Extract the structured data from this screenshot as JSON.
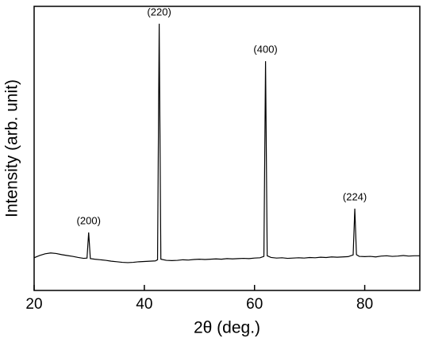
{
  "chart_data": {
    "type": "line",
    "xlabel": "2θ (deg.)",
    "ylabel": "Intensity (arb. unit)",
    "xlim": [
      20,
      90
    ],
    "ylim": [
      0,
      100
    ],
    "xticks": [
      20,
      40,
      60,
      80
    ],
    "yticks": [],
    "x": [
      20,
      21,
      22,
      23,
      24,
      25,
      26,
      27,
      28,
      29,
      29.6,
      29.9,
      30.2,
      31,
      32,
      33,
      34,
      35,
      36,
      37,
      38,
      39,
      40,
      41,
      42,
      42.4,
      42.7,
      43.0,
      44,
      45,
      46,
      47,
      48,
      49,
      50,
      51,
      52,
      53,
      54,
      55,
      56,
      57,
      58,
      59,
      60,
      61,
      61.7,
      62.0,
      62.3,
      63,
      64,
      65,
      66,
      67,
      68,
      69,
      70,
      71,
      72,
      73,
      74,
      75,
      76,
      77,
      77.9,
      78.2,
      78.5,
      79,
      80,
      81,
      82,
      83,
      84,
      85,
      86,
      87,
      88,
      89,
      90
    ],
    "series": [
      {
        "color": "#000000",
        "values": [
          11.5,
          12.3,
          12.9,
          13.2,
          13.0,
          12.6,
          12.3,
          12.0,
          11.6,
          11.3,
          11.4,
          20.4,
          11.2,
          11.0,
          10.8,
          10.6,
          10.3,
          10.1,
          9.9,
          9.8,
          9.9,
          10.1,
          10.2,
          10.3,
          10.4,
          10.8,
          93.9,
          11.0,
          10.6,
          10.5,
          10.6,
          10.8,
          10.7,
          10.9,
          11.0,
          10.9,
          11.0,
          11.1,
          11.0,
          11.2,
          11.1,
          11.2,
          11.3,
          11.2,
          11.4,
          11.5,
          12.0,
          80.7,
          12.2,
          11.6,
          11.4,
          11.5,
          11.3,
          11.4,
          11.5,
          11.4,
          11.6,
          11.5,
          11.7,
          11.6,
          11.8,
          11.7,
          11.8,
          11.9,
          12.5,
          28.8,
          12.6,
          12.0,
          11.9,
          12.0,
          11.8,
          12.1,
          12.2,
          12.0,
          12.1,
          12.3,
          12.1,
          12.2,
          12.2
        ]
      }
    ],
    "annotations": [
      {
        "text": "(200)",
        "x": 29.9
      },
      {
        "text": "(220)",
        "x": 42.7
      },
      {
        "text": "(400)",
        "x": 62.0
      },
      {
        "text": "(224)",
        "x": 78.2
      }
    ]
  }
}
